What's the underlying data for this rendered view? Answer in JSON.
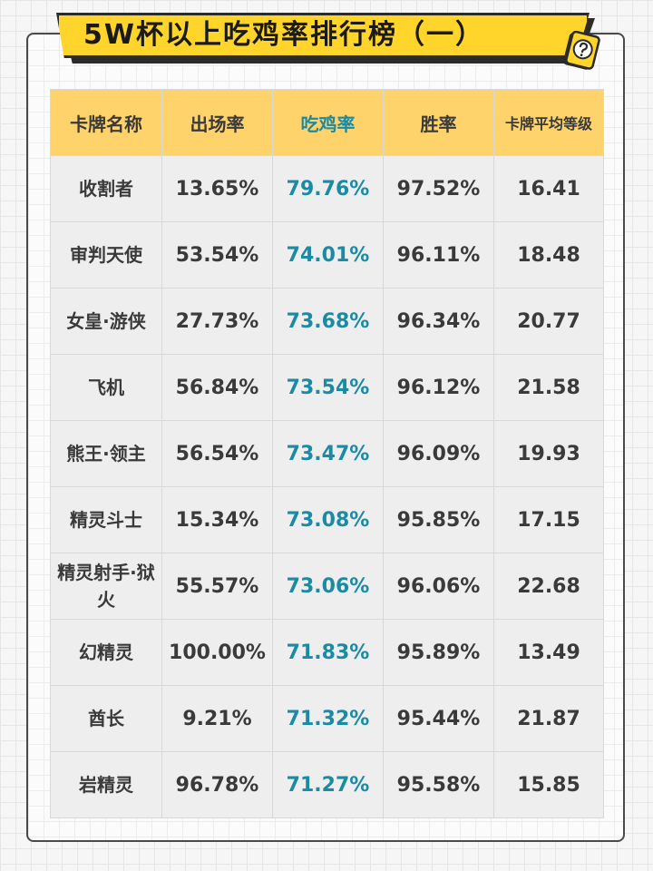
{
  "title": "5W杯以上吃鸡率排行榜（一）",
  "icon": "question-card-icon",
  "colors": {
    "banner": "#ffd52b",
    "header_row": "#ffd36b",
    "highlight_text": "#1b8aa3",
    "cell_bg": "#eeeeee"
  },
  "table": {
    "headers": [
      "卡牌名称",
      "出场率",
      "吃鸡率",
      "胜率",
      "卡牌平均等级"
    ],
    "rows": [
      {
        "name": "收割者",
        "appear": "13.65%",
        "chicken": "79.76%",
        "win": "97.52%",
        "level": "16.41"
      },
      {
        "name": "审判天使",
        "appear": "53.54%",
        "chicken": "74.01%",
        "win": "96.11%",
        "level": "18.48"
      },
      {
        "name": "女皇·游侠",
        "appear": "27.73%",
        "chicken": "73.68%",
        "win": "96.34%",
        "level": "20.77"
      },
      {
        "name": "飞机",
        "appear": "56.84%",
        "chicken": "73.54%",
        "win": "96.12%",
        "level": "21.58"
      },
      {
        "name": "熊王·领主",
        "appear": "56.54%",
        "chicken": "73.47%",
        "win": "96.09%",
        "level": "19.93"
      },
      {
        "name": "精灵斗士",
        "appear": "15.34%",
        "chicken": "73.08%",
        "win": "95.85%",
        "level": "17.15"
      },
      {
        "name": "精灵射手·狱火",
        "appear": "55.57%",
        "chicken": "73.06%",
        "win": "96.06%",
        "level": "22.68"
      },
      {
        "name": "幻精灵",
        "appear": "100.00%",
        "chicken": "71.83%",
        "win": "95.89%",
        "level": "13.49"
      },
      {
        "name": "酋长",
        "appear": "9.21%",
        "chicken": "71.32%",
        "win": "95.44%",
        "level": "21.87"
      },
      {
        "name": "岩精灵",
        "appear": "96.78%",
        "chicken": "71.27%",
        "win": "95.58%",
        "level": "15.85"
      }
    ]
  }
}
